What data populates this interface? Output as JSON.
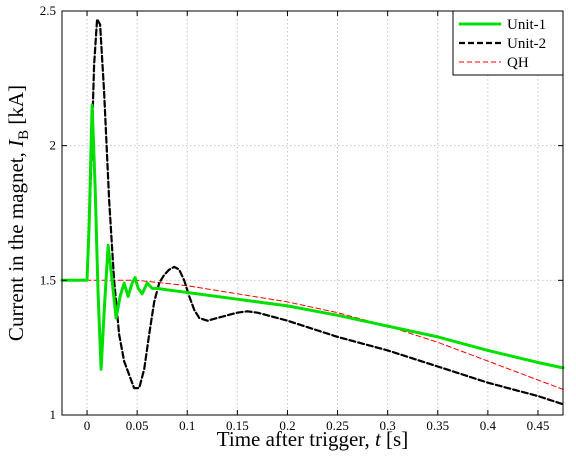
{
  "chart_data": {
    "type": "line",
    "title": "",
    "xlabel": "Time after trigger, ",
    "xlabel_var": "t",
    "xlabel_unit": " [s]",
    "ylabel": "Current in the magnet,  ",
    "ylabel_var": "I",
    "ylabel_sub": "B",
    "ylabel_unit": " [kA]",
    "xlim": [
      -0.025,
      0.475
    ],
    "ylim": [
      1.0,
      2.5
    ],
    "grid": true,
    "legend_position": "top-right",
    "x_ticks": [
      0,
      0.05,
      0.1,
      0.15,
      0.2,
      0.25,
      0.3,
      0.35,
      0.4,
      0.45
    ],
    "x_tick_labels": [
      "0",
      "0.05",
      "0.1",
      "0.15",
      "0.2",
      "0.25",
      "0.3",
      "0.35",
      "0.4",
      "0.45"
    ],
    "y_ticks": [
      1,
      1.5,
      2,
      2.5
    ],
    "y_tick_labels": [
      "1",
      "1.5",
      "2",
      "2.5"
    ],
    "series": [
      {
        "name": "Unit-1",
        "color": "#00e000",
        "style": "solid",
        "x": [
          -0.025,
          0.0,
          0.002,
          0.005,
          0.008,
          0.011,
          0.014,
          0.017,
          0.021,
          0.025,
          0.029,
          0.033,
          0.037,
          0.041,
          0.045,
          0.048,
          0.051,
          0.055,
          0.06,
          0.065,
          0.07,
          0.08,
          0.1,
          0.15,
          0.2,
          0.25,
          0.3,
          0.35,
          0.4,
          0.45,
          0.475
        ],
        "y": [
          1.5,
          1.5,
          1.7,
          2.15,
          1.85,
          1.45,
          1.17,
          1.38,
          1.63,
          1.5,
          1.36,
          1.44,
          1.49,
          1.44,
          1.49,
          1.51,
          1.47,
          1.45,
          1.49,
          1.47,
          1.47,
          1.465,
          1.455,
          1.43,
          1.405,
          1.37,
          1.33,
          1.29,
          1.24,
          1.195,
          1.175
        ]
      },
      {
        "name": "Unit-2",
        "color": "#000000",
        "style": "dashed",
        "x": [
          -0.025,
          0.0,
          0.003,
          0.007,
          0.01,
          0.013,
          0.017,
          0.022,
          0.027,
          0.032,
          0.037,
          0.042,
          0.047,
          0.052,
          0.057,
          0.062,
          0.067,
          0.072,
          0.077,
          0.082,
          0.087,
          0.092,
          0.097,
          0.102,
          0.107,
          0.112,
          0.12,
          0.13,
          0.14,
          0.15,
          0.16,
          0.17,
          0.18,
          0.2,
          0.25,
          0.3,
          0.35,
          0.4,
          0.45,
          0.475
        ],
        "y": [
          1.5,
          1.5,
          1.8,
          2.3,
          2.47,
          2.45,
          2.2,
          1.8,
          1.5,
          1.3,
          1.2,
          1.15,
          1.1,
          1.1,
          1.17,
          1.3,
          1.42,
          1.49,
          1.52,
          1.54,
          1.55,
          1.54,
          1.5,
          1.44,
          1.39,
          1.36,
          1.35,
          1.36,
          1.37,
          1.38,
          1.385,
          1.38,
          1.37,
          1.35,
          1.29,
          1.24,
          1.18,
          1.12,
          1.07,
          1.04
        ]
      },
      {
        "name": "QH",
        "color": "#ff0000",
        "style": "dashed",
        "x": [
          -0.025,
          0.0,
          0.05,
          0.1,
          0.15,
          0.2,
          0.25,
          0.3,
          0.35,
          0.4,
          0.45,
          0.475
        ],
        "y": [
          1.5,
          1.5,
          1.5,
          1.48,
          1.45,
          1.42,
          1.38,
          1.33,
          1.27,
          1.2,
          1.13,
          1.095
        ]
      }
    ]
  }
}
